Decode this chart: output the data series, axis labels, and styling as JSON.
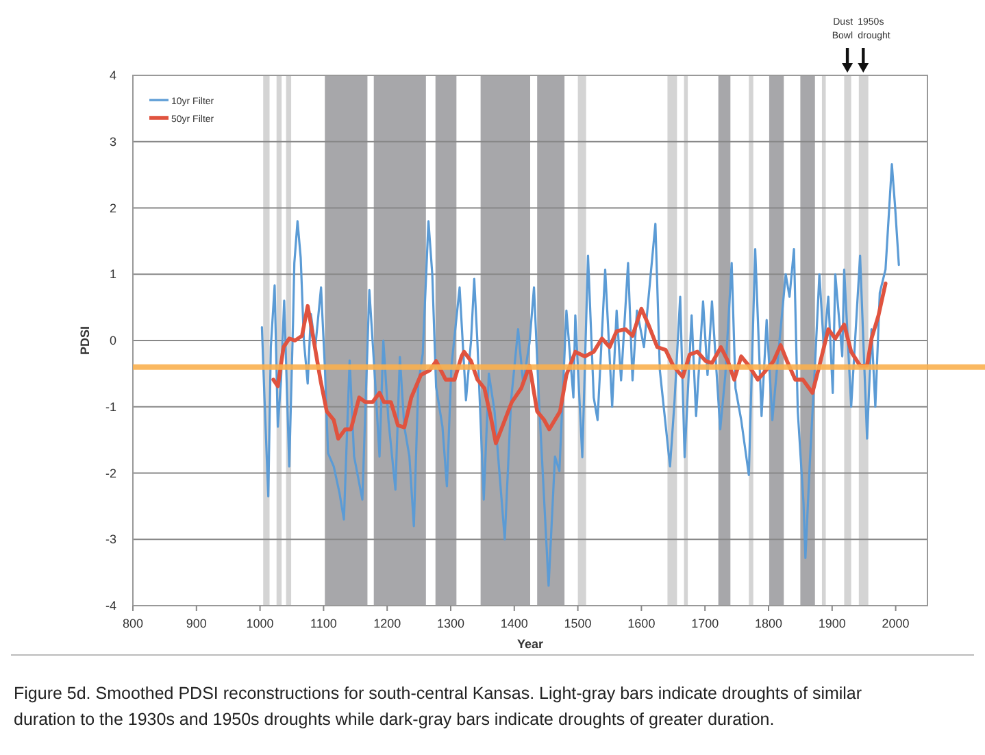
{
  "chart_data": {
    "type": "line",
    "xlabel": "Year",
    "ylabel": "PDSI",
    "xlim": [
      800,
      2050
    ],
    "xticks": [
      800,
      900,
      1000,
      1100,
      1200,
      1300,
      1400,
      1500,
      1600,
      1700,
      1800,
      1900,
      2000
    ],
    "ylim": [
      -4,
      4
    ],
    "yticks": [
      -4,
      -3,
      -2,
      -1,
      0,
      1,
      2,
      3,
      4
    ],
    "grid": "y",
    "legend": "top left",
    "line_style": "solid",
    "marker": "none",
    "series": [
      {
        "name": "10yr Filter",
        "color": "#5b9bd5",
        "x": [
          1003,
          1007,
          1013,
          1017,
          1023,
          1028,
          1033,
          1038,
          1046,
          1052,
          1054,
          1059,
          1064,
          1069,
          1075,
          1080,
          1087,
          1096,
          1102,
          1107,
          1116,
          1125,
          1132,
          1141,
          1148,
          1161,
          1172,
          1181,
          1188,
          1194,
          1202,
          1213,
          1220,
          1227,
          1235,
          1242,
          1249,
          1256,
          1265,
          1271,
          1277,
          1287,
          1294,
          1301,
          1314,
          1324,
          1332,
          1337,
          1342,
          1352,
          1360,
          1369,
          1385,
          1395,
          1406,
          1414,
          1424,
          1431,
          1439,
          1454,
          1464,
          1471,
          1482,
          1493,
          1496,
          1507,
          1516,
          1525,
          1531,
          1543,
          1554,
          1561,
          1568,
          1579,
          1586,
          1593,
          1604,
          1622,
          1629,
          1645,
          1652,
          1661,
          1668,
          1679,
          1686,
          1697,
          1704,
          1711,
          1724,
          1732,
          1742,
          1748,
          1757,
          1769,
          1779,
          1789,
          1797,
          1806,
          1815,
          1827,
          1833,
          1840,
          1846,
          1855,
          1858,
          1865,
          1873,
          1880,
          1887,
          1894,
          1901,
          1905,
          1916,
          1919,
          1930,
          1944,
          1955,
          1962,
          1968,
          1975,
          1984,
          1994,
          1999,
          2005
        ],
        "values": [
          0.2,
          -0.86,
          -2.35,
          -0.1,
          0.83,
          -1.3,
          -0.6,
          0.6,
          -1.9,
          0.3,
          1.17,
          1.8,
          1.25,
          0,
          -0.65,
          0.4,
          -0.1,
          0.8,
          -0.4,
          -1.7,
          -1.9,
          -2.3,
          -2.7,
          -0.3,
          -1.75,
          -2.4,
          0.76,
          -0.6,
          -1.75,
          0,
          -1.2,
          -2.25,
          -0.25,
          -1.3,
          -1.75,
          -2.8,
          -0.65,
          -0.2,
          1.8,
          1,
          -0.7,
          -1.3,
          -2.2,
          -0.4,
          0.8,
          -0.9,
          0,
          0.93,
          -0.03,
          -2.4,
          -0.5,
          -1.07,
          -3,
          -0.9,
          0.17,
          -0.65,
          -0.03,
          0.8,
          -0.93,
          -3.7,
          -1.75,
          -1.97,
          0.45,
          -0.86,
          0.38,
          -1.76,
          1.28,
          -0.86,
          -1.2,
          1.07,
          -1,
          0.45,
          -0.6,
          1.17,
          -0.6,
          0.45,
          -0.1,
          1.76,
          -0.45,
          -1.9,
          -0.93,
          0.66,
          -1.76,
          0.38,
          -1.14,
          0.59,
          -0.52,
          0.59,
          -1.34,
          -0.52,
          1.17,
          -0.72,
          -1.2,
          -2.03,
          1.38,
          -1.14,
          0.31,
          -1.2,
          -0.24,
          1,
          0.66,
          1.38,
          -1.07,
          -2.45,
          -3.28,
          -1.83,
          -0.38,
          1,
          -0.1,
          0.66,
          -0.79,
          1,
          -0.24,
          1.07,
          -1,
          1.28,
          -1.48,
          0.17,
          -1,
          0.72,
          1.07,
          2.66,
          2.03,
          1.14
        ]
      },
      {
        "name": "50yr Filter",
        "color": "#e0533f",
        "x": [
          1021,
          1028,
          1037,
          1046,
          1055,
          1066,
          1075,
          1084,
          1095,
          1105,
          1116,
          1123,
          1134,
          1143,
          1156,
          1166,
          1177,
          1188,
          1195,
          1206,
          1217,
          1227,
          1238,
          1253,
          1267,
          1277,
          1292,
          1306,
          1317,
          1321,
          1332,
          1342,
          1353,
          1364,
          1371,
          1382,
          1396,
          1411,
          1424,
          1436,
          1447,
          1455,
          1472,
          1482,
          1496,
          1511,
          1525,
          1538,
          1550,
          1561,
          1575,
          1586,
          1600,
          1611,
          1625,
          1638,
          1650,
          1665,
          1676,
          1688,
          1701,
          1711,
          1725,
          1736,
          1746,
          1757,
          1769,
          1783,
          1796,
          1808,
          1819,
          1829,
          1842,
          1854,
          1869,
          1880,
          1894,
          1905,
          1919,
          1930,
          1944,
          1955,
          1962,
          1973,
          1984
        ],
        "values": [
          -0.59,
          -0.69,
          -0.1,
          0.03,
          0,
          0.07,
          0.52,
          0.03,
          -0.59,
          -1.07,
          -1.2,
          -1.48,
          -1.34,
          -1.34,
          -0.86,
          -0.93,
          -0.93,
          -0.79,
          -0.93,
          -0.93,
          -1.28,
          -1.31,
          -0.86,
          -0.52,
          -0.45,
          -0.31,
          -0.59,
          -0.59,
          -0.24,
          -0.17,
          -0.31,
          -0.59,
          -0.72,
          -1.2,
          -1.55,
          -1.28,
          -0.93,
          -0.72,
          -0.38,
          -1.07,
          -1.2,
          -1.34,
          -1.07,
          -0.52,
          -0.17,
          -0.24,
          -0.17,
          0.03,
          -0.1,
          0.14,
          0.17,
          0.07,
          0.48,
          0.24,
          -0.1,
          -0.14,
          -0.38,
          -0.55,
          -0.21,
          -0.17,
          -0.31,
          -0.34,
          -0.1,
          -0.31,
          -0.59,
          -0.24,
          -0.38,
          -0.59,
          -0.45,
          -0.31,
          -0.07,
          -0.31,
          -0.59,
          -0.59,
          -0.79,
          -0.38,
          0.17,
          0.03,
          0.24,
          -0.17,
          -0.38,
          -0.38,
          0.03,
          0.38,
          0.86
        ]
      }
    ],
    "ref_lines": [
      {
        "axis": "y",
        "value": -0.4,
        "color": "#f9b04f"
      }
    ],
    "bands": [
      {
        "axis": "x",
        "from": 1005,
        "to": 1015,
        "color": "#d4d4d4"
      },
      {
        "axis": "x",
        "from": 1026,
        "to": 1034,
        "color": "#d4d4d4"
      },
      {
        "axis": "x",
        "from": 1041,
        "to": 1049,
        "color": "#d4d4d4"
      },
      {
        "axis": "x",
        "from": 1102,
        "to": 1169,
        "color": "#a7a7aa"
      },
      {
        "axis": "x",
        "from": 1179,
        "to": 1261,
        "color": "#a7a7aa"
      },
      {
        "axis": "x",
        "from": 1276,
        "to": 1309,
        "color": "#a7a7aa"
      },
      {
        "axis": "x",
        "from": 1347,
        "to": 1425,
        "color": "#a7a7aa"
      },
      {
        "axis": "x",
        "from": 1436,
        "to": 1479,
        "color": "#a7a7aa"
      },
      {
        "axis": "x",
        "from": 1500,
        "to": 1513,
        "color": "#d4d4d4"
      },
      {
        "axis": "x",
        "from": 1641,
        "to": 1656,
        "color": "#d4d4d4"
      },
      {
        "axis": "x",
        "from": 1667,
        "to": 1673,
        "color": "#d4d4d4"
      },
      {
        "axis": "x",
        "from": 1721,
        "to": 1740,
        "color": "#a7a7aa"
      },
      {
        "axis": "x",
        "from": 1769,
        "to": 1776,
        "color": "#d4d4d4"
      },
      {
        "axis": "x",
        "from": 1801,
        "to": 1824,
        "color": "#a7a7aa"
      },
      {
        "axis": "x",
        "from": 1850,
        "to": 1873,
        "color": "#a7a7aa"
      },
      {
        "axis": "x",
        "from": 1884,
        "to": 1890,
        "color": "#d4d4d4"
      },
      {
        "axis": "x",
        "from": 1919,
        "to": 1930,
        "color": "#d4d4d4"
      },
      {
        "axis": "x",
        "from": 1942,
        "to": 1957,
        "color": "#d4d4d4"
      }
    ],
    "annotations": [
      {
        "text": "Dust Bowl",
        "x": 1924,
        "y": 4
      },
      {
        "text": "1950s drought",
        "x": 1949,
        "y": 4
      },
      "Figure 5d. Smoothed PDSI reconstructions for south-central Kansas. Light-gray bars indicate droughts of similar duration to the 1930s and 1950s droughts while dark-gray bars indicate droughts of greater duration."
    ]
  }
}
